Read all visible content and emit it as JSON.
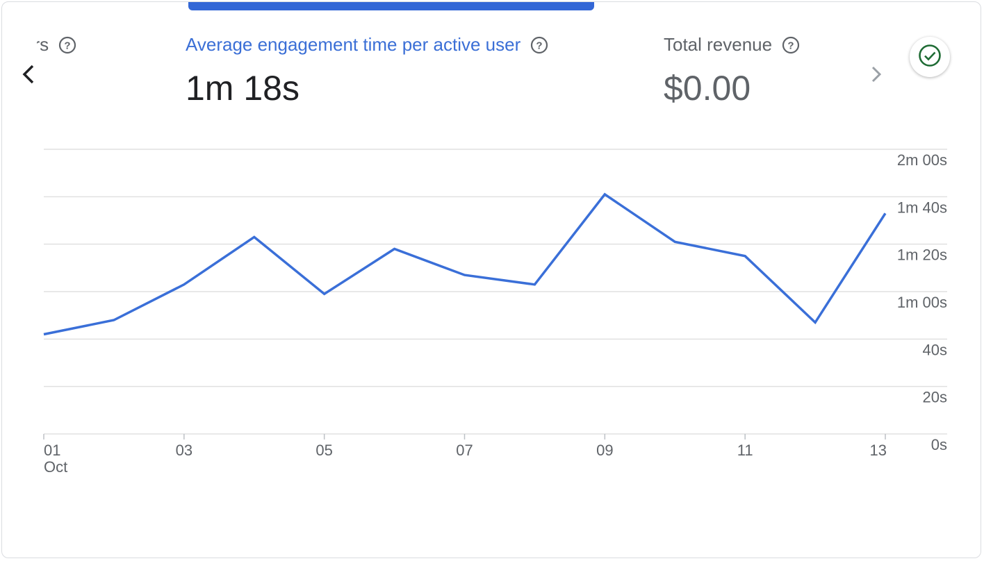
{
  "metrics": [
    {
      "label": "sers",
      "value": ""
    },
    {
      "label": "Average engagement time per active user",
      "value": "1m 18s"
    },
    {
      "label": "Total revenue",
      "value": "$0.00"
    }
  ],
  "icons": {
    "help": "help-circle-icon",
    "prev": "chevron-left-icon",
    "next": "chevron-right-icon",
    "status": "check-circle-icon"
  },
  "colors": {
    "accent": "#3b6fd6",
    "line": "#3a6fd8",
    "status_green": "#1e6b34"
  },
  "chart_data": {
    "type": "line",
    "x": [
      "01",
      "02",
      "03",
      "04",
      "05",
      "06",
      "07",
      "08",
      "09",
      "10",
      "11",
      "12",
      "13"
    ],
    "x_tick_labels": [
      "01",
      "03",
      "05",
      "07",
      "09",
      "11",
      "13"
    ],
    "x_sub_label": "Oct",
    "series": [
      {
        "values": [
          42,
          48,
          63,
          83,
          59,
          78,
          67,
          63,
          101,
          81,
          75,
          47,
          93
        ]
      }
    ],
    "y_unit": "seconds",
    "ylim": [
      0,
      120
    ],
    "y_tick_labels": [
      "0s",
      "20s",
      "40s",
      "1m 00s",
      "1m 20s",
      "1m 40s",
      "2m 00s"
    ],
    "y_axis_position": "right",
    "grid": true
  }
}
